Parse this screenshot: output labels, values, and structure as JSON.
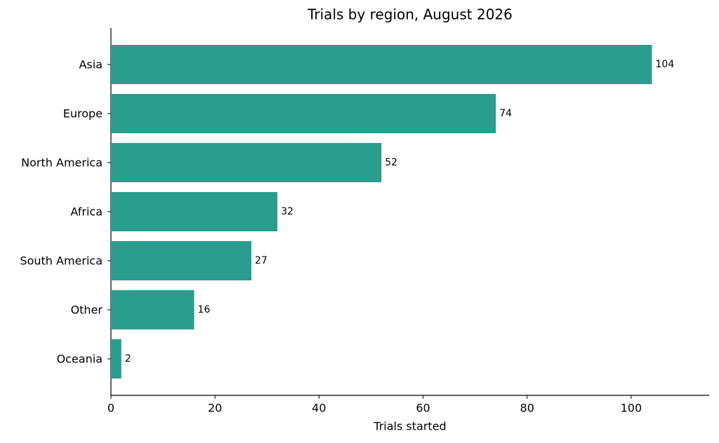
{
  "chart_data": {
    "type": "barh",
    "title": "Trials by region, August 2026",
    "x_label": "Trials started",
    "categories": [
      "Asia",
      "Europe",
      "North America",
      "Africa",
      "South America",
      "Other",
      "Oceania"
    ],
    "values": [
      104,
      74,
      52,
      32,
      27,
      16,
      2
    ],
    "color": "#2a9d8f",
    "xlim": [
      0,
      115
    ],
    "xticks": [
      0,
      20,
      40,
      60,
      80,
      100
    ],
    "grid": false
  }
}
